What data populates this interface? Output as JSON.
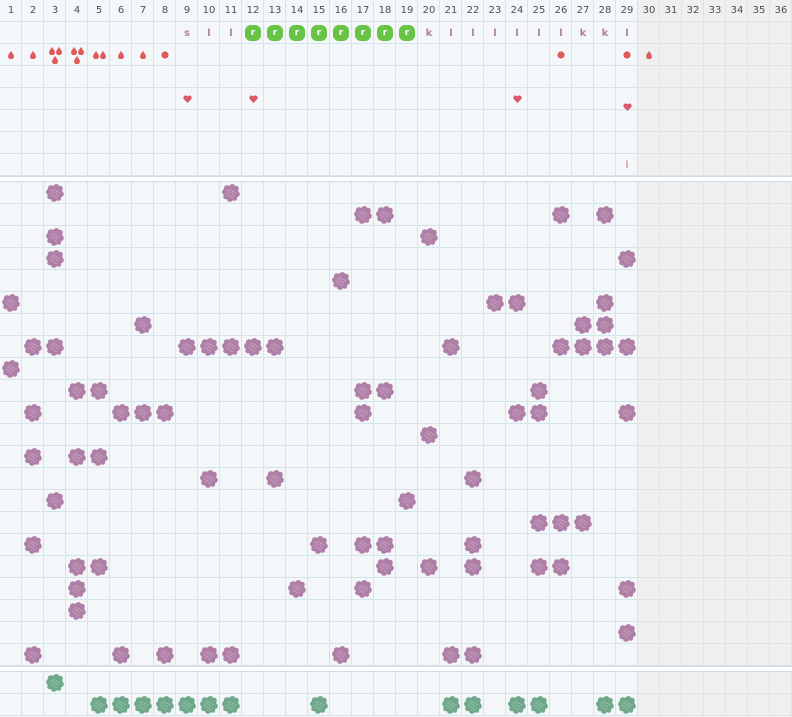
{
  "days": [
    "1",
    "2",
    "3",
    "4",
    "5",
    "6",
    "7",
    "8",
    "9",
    "10",
    "11",
    "12",
    "13",
    "14",
    "15",
    "16",
    "17",
    "18",
    "19",
    "20",
    "21",
    "22",
    "23",
    "24",
    "25",
    "26",
    "27",
    "28",
    "29",
    "30",
    "31",
    "32",
    "33",
    "34",
    "35",
    "36"
  ],
  "today_index": 29,
  "colors": {
    "letter": "#b17fa6",
    "r_badge": "#68c444",
    "bleed": "#e05a5a",
    "heart": "#d9566b",
    "blob_purple": "#b07fa8",
    "blob_green": "#6fa88a"
  },
  "letters_row": [
    {
      "day": 9,
      "text": "s"
    },
    {
      "day": 10,
      "text": "l"
    },
    {
      "day": 11,
      "text": "l"
    },
    {
      "day": 12,
      "text": "r",
      "badge": true
    },
    {
      "day": 13,
      "text": "r",
      "badge": true
    },
    {
      "day": 14,
      "text": "r",
      "badge": true
    },
    {
      "day": 15,
      "text": "r",
      "badge": true
    },
    {
      "day": 16,
      "text": "r",
      "badge": true
    },
    {
      "day": 17,
      "text": "r",
      "badge": true
    },
    {
      "day": 18,
      "text": "r",
      "badge": true
    },
    {
      "day": 19,
      "text": "r",
      "badge": true
    },
    {
      "day": 20,
      "text": "k"
    },
    {
      "day": 21,
      "text": "l"
    },
    {
      "day": 22,
      "text": "l"
    },
    {
      "day": 23,
      "text": "l"
    },
    {
      "day": 24,
      "text": "l"
    },
    {
      "day": 25,
      "text": "l"
    },
    {
      "day": 26,
      "text": "l"
    },
    {
      "day": 27,
      "text": "k"
    },
    {
      "day": 28,
      "text": "k"
    },
    {
      "day": 29,
      "text": "l"
    }
  ],
  "bleed_row": [
    {
      "day": 1,
      "kind": "drop",
      "count": 1
    },
    {
      "day": 2,
      "kind": "drop",
      "count": 1
    },
    {
      "day": 3,
      "kind": "drop",
      "count": 3
    },
    {
      "day": 4,
      "kind": "drop",
      "count": 3
    },
    {
      "day": 5,
      "kind": "drop",
      "count": 2
    },
    {
      "day": 6,
      "kind": "drop",
      "count": 1
    },
    {
      "day": 7,
      "kind": "drop",
      "count": 1
    },
    {
      "day": 8,
      "kind": "dot"
    },
    {
      "day": 26,
      "kind": "dot"
    },
    {
      "day": 29,
      "kind": "dot"
    },
    {
      "day": 30,
      "kind": "drop",
      "count": 1
    }
  ],
  "hearts": [
    {
      "day": 9,
      "row": 0
    },
    {
      "day": 12,
      "row": 0
    },
    {
      "day": 24,
      "row": 0
    },
    {
      "day": 29,
      "row": 1
    }
  ],
  "line_mark": {
    "day": 29,
    "text": "l"
  },
  "symptom_rows": [
    [
      3,
      11
    ],
    [
      17,
      18,
      26,
      28
    ],
    [
      3,
      20
    ],
    [
      3,
      29
    ],
    [
      16
    ],
    [
      1,
      23,
      24,
      28
    ],
    [
      7,
      27,
      28
    ],
    [
      2,
      3,
      9,
      10,
      11,
      12,
      13,
      21,
      26,
      27,
      28,
      29
    ],
    [
      1
    ],
    [
      4,
      5,
      17,
      18,
      25
    ],
    [
      2,
      6,
      7,
      8,
      17,
      24,
      25,
      29
    ],
    [
      20
    ],
    [
      2,
      4,
      5
    ],
    [
      10,
      13,
      22
    ],
    [
      3,
      19
    ],
    [
      25,
      26,
      27
    ],
    [
      2,
      15,
      17,
      18,
      22
    ],
    [
      4,
      5,
      18,
      20,
      22,
      25,
      26
    ],
    [
      4,
      14,
      17,
      29
    ],
    [
      4
    ],
    [
      29
    ],
    [
      2,
      6,
      8,
      10,
      11,
      16,
      21,
      22
    ]
  ],
  "green_rows": [
    [
      3
    ],
    [
      5,
      6,
      7,
      8,
      9,
      10,
      11,
      15,
      21,
      22,
      24,
      25,
      28,
      29
    ]
  ]
}
